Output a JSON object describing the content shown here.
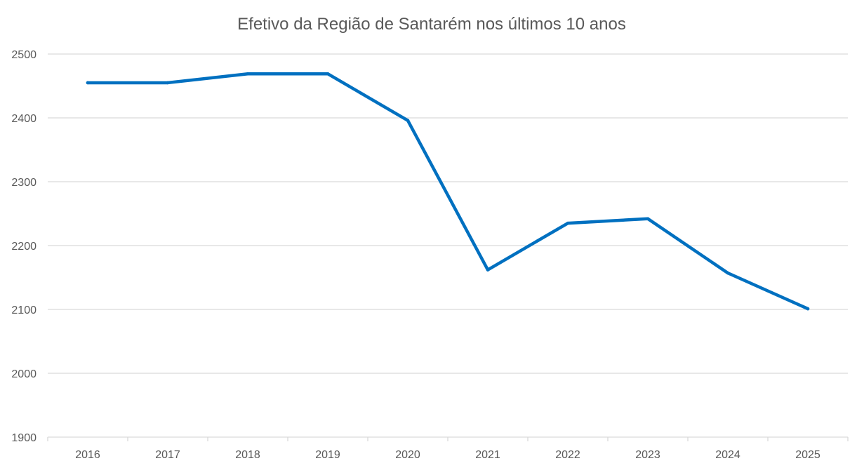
{
  "chart_data": {
    "type": "line",
    "title": "Efetivo da Região de Santarém nos últimos 10 anos",
    "xlabel": "",
    "ylabel": "",
    "categories": [
      "2016",
      "2017",
      "2018",
      "2019",
      "2020",
      "2021",
      "2022",
      "2023",
      "2024",
      "2025"
    ],
    "series": [
      {
        "values": [
          2455,
          2455,
          2469,
          2469,
          2396,
          2162,
          2235,
          2242,
          2157,
          2101
        ],
        "color": "#0070c0"
      }
    ],
    "ylim": [
      1900,
      2500
    ],
    "yticks": [
      1900,
      2000,
      2100,
      2200,
      2300,
      2400,
      2500
    ],
    "grid": true,
    "legend": "none"
  }
}
